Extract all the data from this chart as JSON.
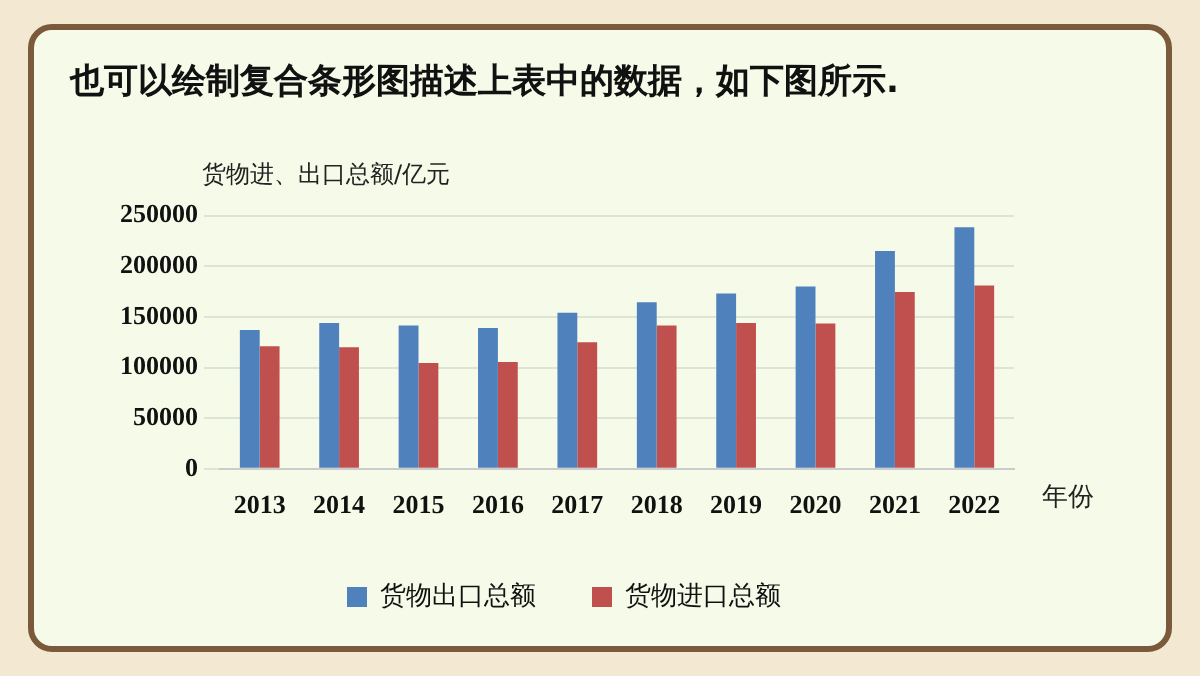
{
  "chart_data": {
    "type": "bar",
    "title": "也可以绘制复合条形图描述上表中的数据，如下图所示.",
    "ylabel": "货物进、出口总额/亿元",
    "xlabel": "年份",
    "categories": [
      "2013",
      "2014",
      "2015",
      "2016",
      "2017",
      "2018",
      "2019",
      "2020",
      "2021",
      "2022"
    ],
    "series": [
      {
        "name": "货物出口总额",
        "color": "#4f81bd",
        "values": [
          137000,
          144000,
          141500,
          139000,
          154000,
          164500,
          173000,
          180000,
          215000,
          238500
        ]
      },
      {
        "name": "货物进口总额",
        "color": "#c0504d",
        "values": [
          121000,
          120000,
          104500,
          105500,
          125000,
          141500,
          144000,
          143500,
          174500,
          181000
        ]
      }
    ],
    "ylim": [
      0,
      250000
    ],
    "yticks": [
      0,
      50000,
      100000,
      150000,
      200000,
      250000
    ],
    "grid": "y",
    "legend": "bottom"
  }
}
